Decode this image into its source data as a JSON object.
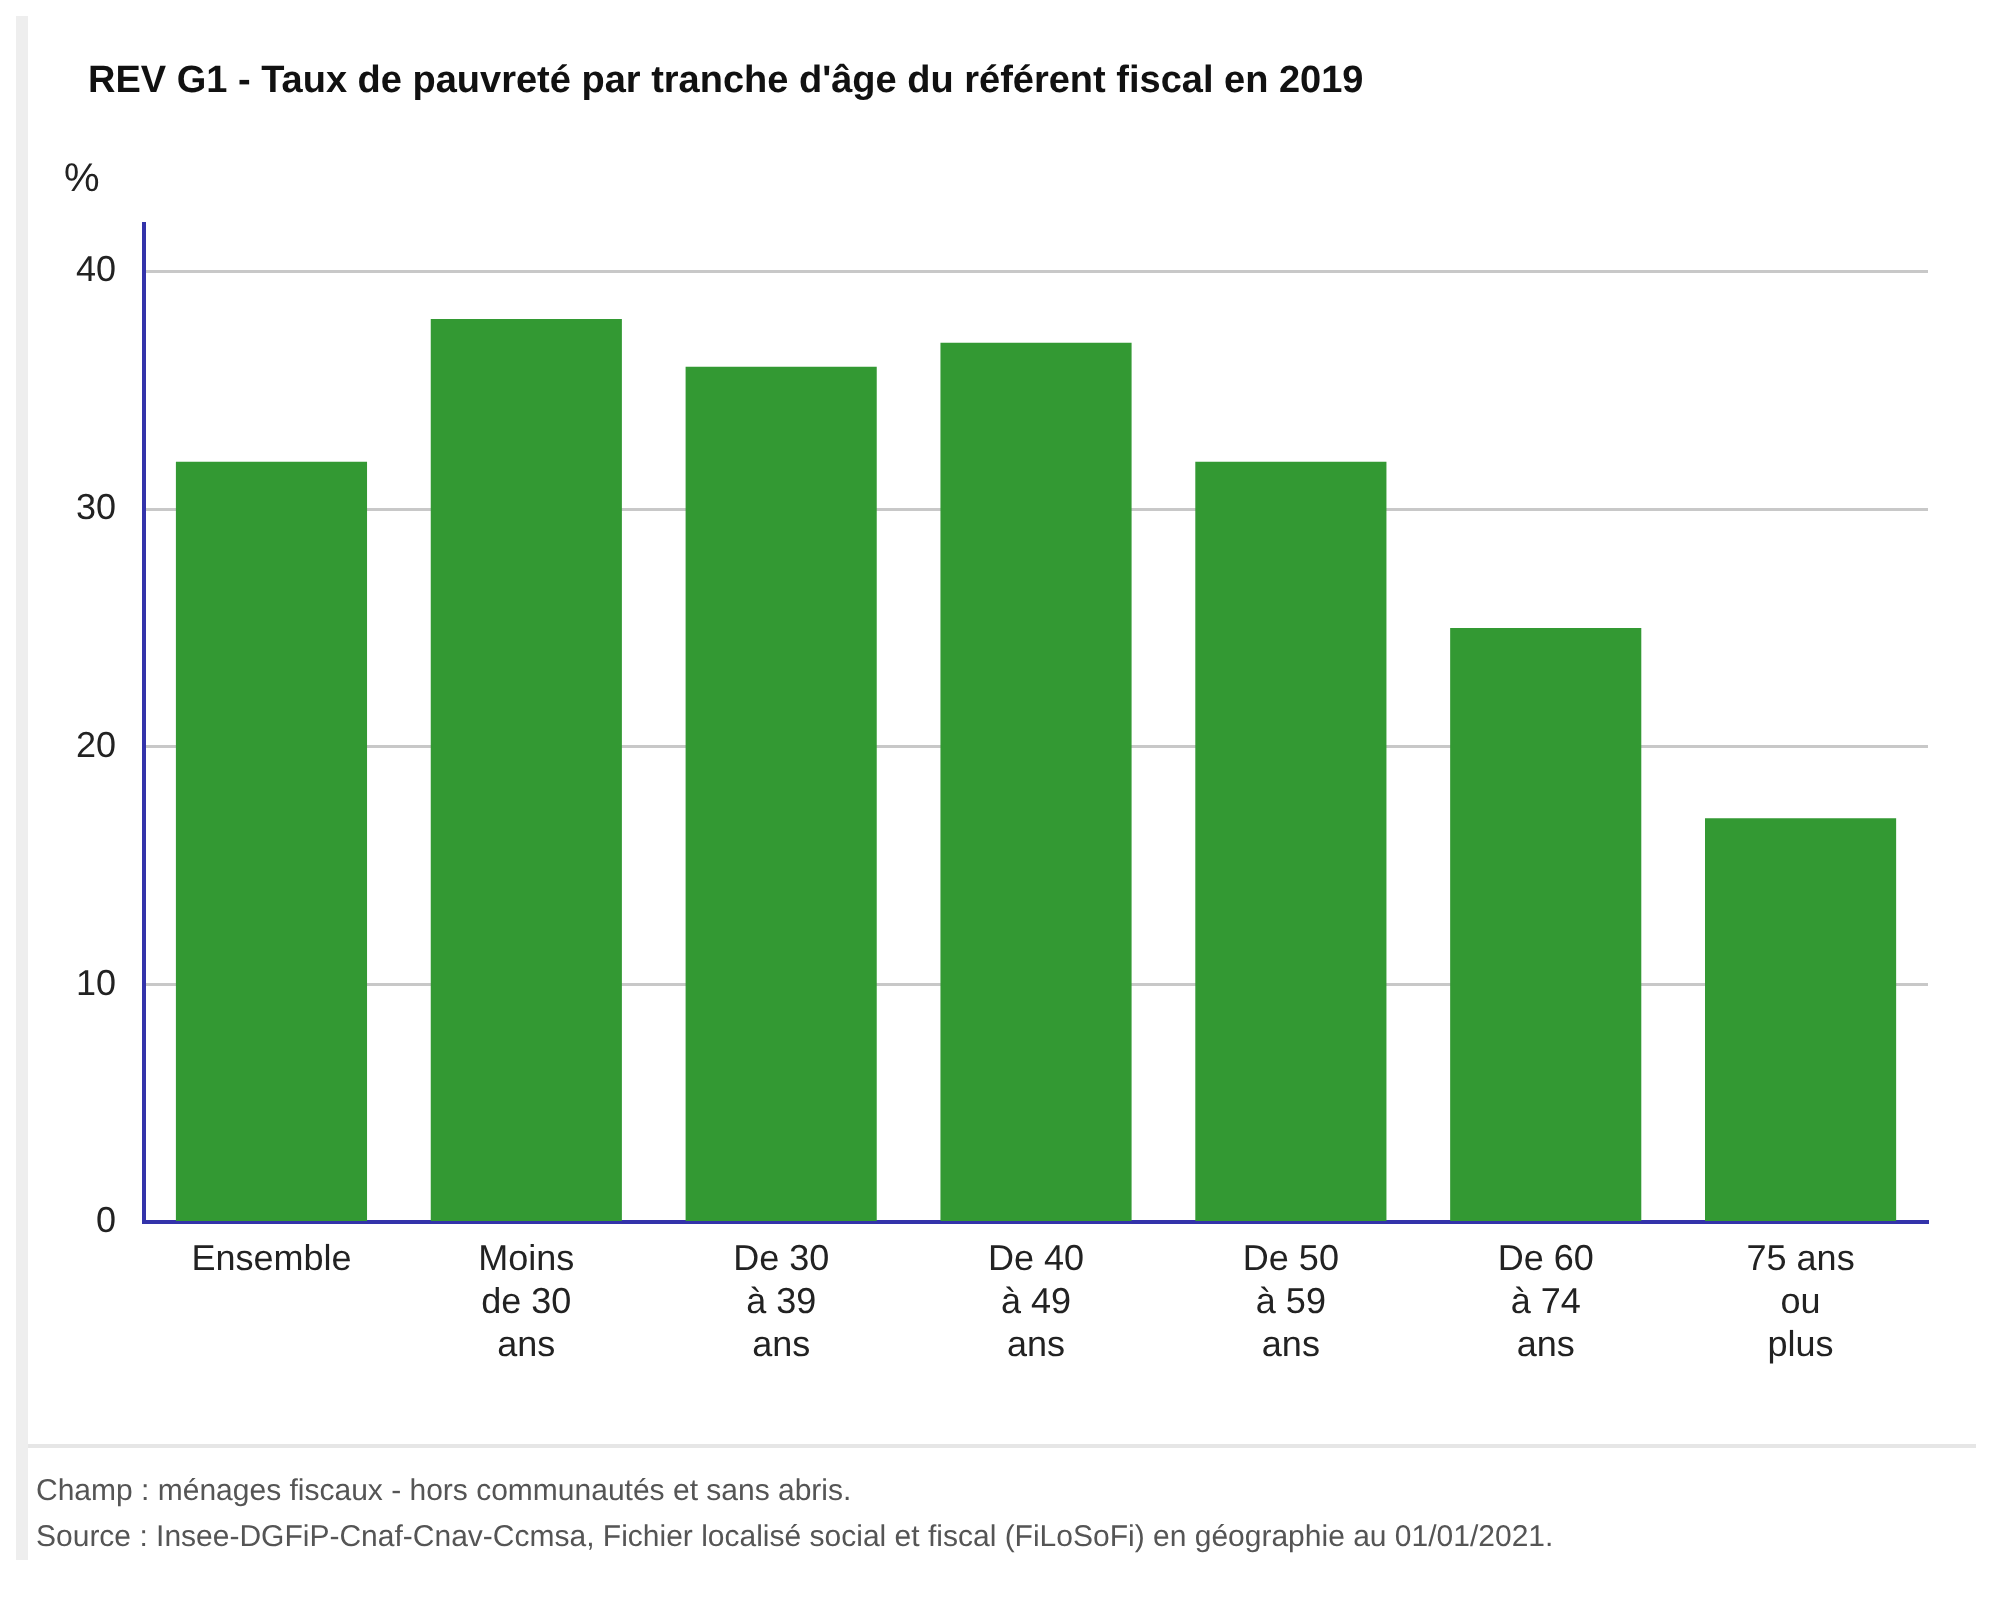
{
  "chart_data": {
    "type": "bar",
    "title": "REV G1 - Taux de pauvreté par tranche d'âge du référent fiscal en 2019",
    "ylabel": "%",
    "categories": [
      "Ensemble",
      "Moins de 30 ans",
      "De 30 à 39 ans",
      "De 40 à 49 ans",
      "De 50 à 59 ans",
      "De 60 à 74 ans",
      "75 ans ou plus"
    ],
    "values": [
      32,
      38,
      36,
      37,
      32,
      25,
      17
    ],
    "color": "#339933",
    "ylim": [
      0,
      42
    ],
    "yticks": [
      0,
      10,
      20,
      30,
      40
    ],
    "grid": "y",
    "annotations": [
      "Champ : ménages fiscaux - hors communautés et sans abris.",
      "Source : Insee-DGFiP-Cnaf-Cnav-Ccmsa, Fichier localisé social et fiscal (FiLoSoFi) en géographie au 01/01/2021."
    ]
  }
}
